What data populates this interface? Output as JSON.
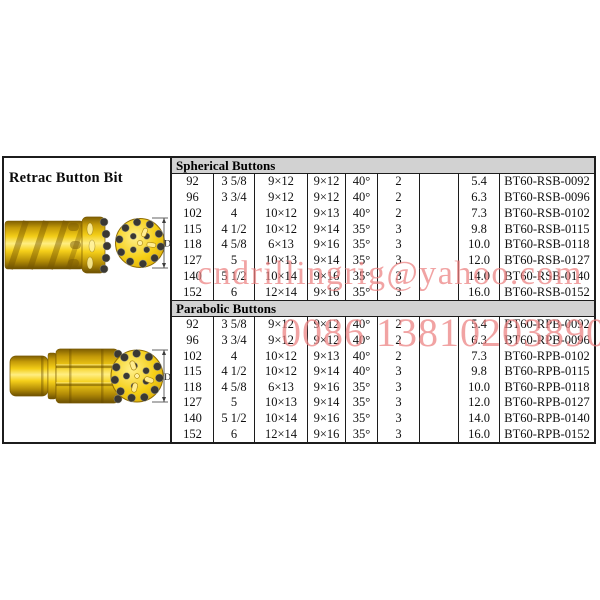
{
  "panel": {
    "title": "Retrac Button Bit",
    "dim_label": "D"
  },
  "table": {
    "sections": [
      {
        "title": "Spherical Buttons",
        "rows": [
          [
            "92",
            "3 5/8",
            "9×12",
            "9×12",
            "40°",
            "2",
            "",
            "5.4",
            "BT60-RSB-0092"
          ],
          [
            "96",
            "3 3/4",
            "9×12",
            "9×12",
            "40°",
            "2",
            "",
            "6.3",
            "BT60-RSB-0096"
          ],
          [
            "102",
            "4",
            "10×12",
            "9×13",
            "40°",
            "2",
            "",
            "7.3",
            "BT60-RSB-0102"
          ],
          [
            "115",
            "4 1/2",
            "10×12",
            "9×14",
            "35°",
            "3",
            "",
            "9.8",
            "BT60-RSB-0115"
          ],
          [
            "118",
            "4 5/8",
            "6×13",
            "9×16",
            "35°",
            "3",
            "",
            "10.0",
            "BT60-RSB-0118"
          ],
          [
            "127",
            "5",
            "10×13",
            "9×14",
            "35°",
            "3",
            "",
            "12.0",
            "BT60-RSB-0127"
          ],
          [
            "140",
            "5 1/2",
            "10×14",
            "9×16",
            "35°",
            "3",
            "",
            "14.0",
            "BT60-RSB-0140"
          ],
          [
            "152",
            "6",
            "12×14",
            "9×16",
            "35°",
            "3",
            "",
            "16.0",
            "BT60-RSB-0152"
          ]
        ]
      },
      {
        "title": "Parabolic Buttons",
        "rows": [
          [
            "92",
            "3 5/8",
            "9×12",
            "9×12",
            "40°",
            "2",
            "",
            "5.4",
            "BT60-RPB-0092"
          ],
          [
            "96",
            "3 3/4",
            "9×12",
            "9×12",
            "40°",
            "2",
            "",
            "6.3",
            "BT60-RPB-0096"
          ],
          [
            "102",
            "4",
            "10×12",
            "9×13",
            "40°",
            "2",
            "",
            "7.3",
            "BT60-RPB-0102"
          ],
          [
            "115",
            "4 1/2",
            "10×12",
            "9×14",
            "40°",
            "3",
            "",
            "9.8",
            "BT60-RPB-0115"
          ],
          [
            "118",
            "4 5/8",
            "6×13",
            "9×16",
            "35°",
            "3",
            "",
            "10.0",
            "BT60-RPB-0118"
          ],
          [
            "127",
            "5",
            "10×13",
            "9×14",
            "35°",
            "3",
            "",
            "12.0",
            "BT60-RPB-0127"
          ],
          [
            "140",
            "5 1/2",
            "10×14",
            "9×16",
            "35°",
            "3",
            "",
            "14.0",
            "BT60-RPB-0140"
          ],
          [
            "152",
            "6",
            "12×14",
            "9×16",
            "35°",
            "3",
            "",
            "16.0",
            "BT60-RPB-0152"
          ]
        ]
      }
    ]
  },
  "watermarks": {
    "email": "cndrillingrig@yahoo.com",
    "phone": "0086 13810203890"
  },
  "colors": {
    "header_bg": "#d2d2d2",
    "table_border": "#1c1c1c",
    "watermark": "#ec8080",
    "bit_yellow": "#f6d01a",
    "button_dark": "#3a3833"
  }
}
